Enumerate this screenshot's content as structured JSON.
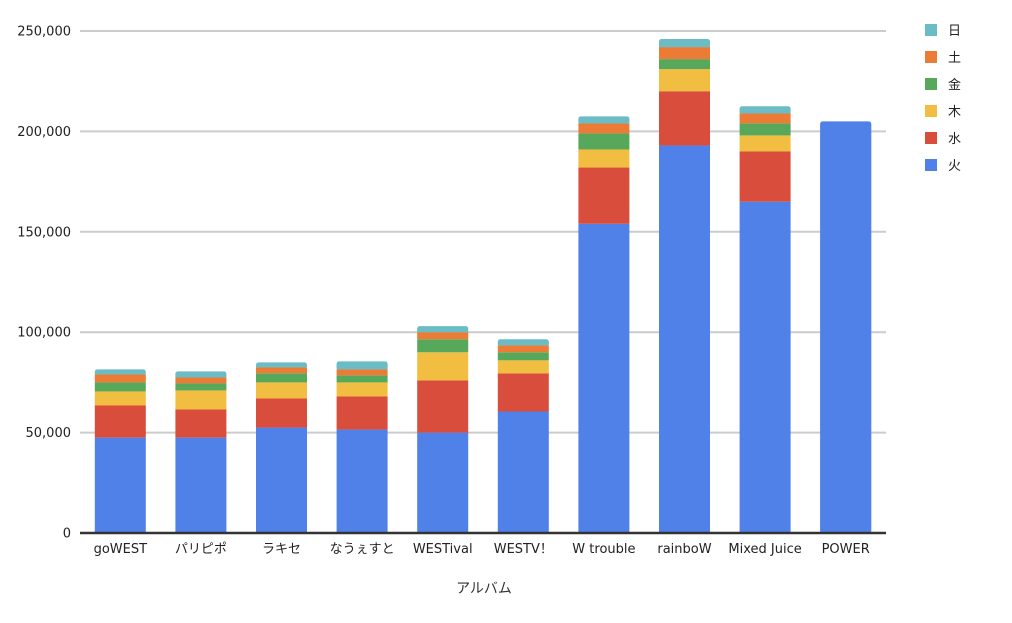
{
  "chart_data": {
    "type": "bar",
    "stacked": true,
    "title": "",
    "xlabel": "アルバム",
    "ylabel": "",
    "ylim": [
      0,
      250000
    ],
    "yticks": [
      0,
      50000,
      100000,
      150000,
      200000,
      250000
    ],
    "ytick_labels": [
      "0",
      "50,000",
      "100,000",
      "150,000",
      "200,000",
      "250,000"
    ],
    "grid": true,
    "legend_position": "right",
    "categories": [
      "goWEST",
      "パリピポ",
      "ラキセ",
      "なうぇすと",
      "WESTival",
      "WESTV！",
      "W trouble",
      "rainboW",
      "Mixed Juice",
      "POWER"
    ],
    "series": [
      {
        "name": "火",
        "color": "#4f81e8",
        "values": [
          47500,
          47500,
          52500,
          51500,
          50000,
          60500,
          154000,
          193000,
          165000,
          205000
        ]
      },
      {
        "name": "水",
        "color": "#d84d3c",
        "values": [
          16000,
          14000,
          14500,
          16500,
          26000,
          19000,
          28000,
          27000,
          25000,
          0
        ]
      },
      {
        "name": "木",
        "color": "#f1be42",
        "values": [
          7000,
          9500,
          8000,
          7000,
          14000,
          6500,
          9000,
          11000,
          8000,
          0
        ]
      },
      {
        "name": "金",
        "color": "#57a85b",
        "values": [
          4500,
          3500,
          4500,
          3500,
          6500,
          4000,
          8000,
          5000,
          6000,
          0
        ]
      },
      {
        "name": "土",
        "color": "#ec7b35",
        "values": [
          4000,
          3000,
          3000,
          3000,
          3500,
          3500,
          5000,
          6000,
          5000,
          0
        ]
      },
      {
        "name": "日",
        "color": "#6cbcc6",
        "values": [
          2500,
          3000,
          2500,
          4000,
          3000,
          3000,
          3500,
          4000,
          3500,
          0
        ]
      }
    ]
  }
}
